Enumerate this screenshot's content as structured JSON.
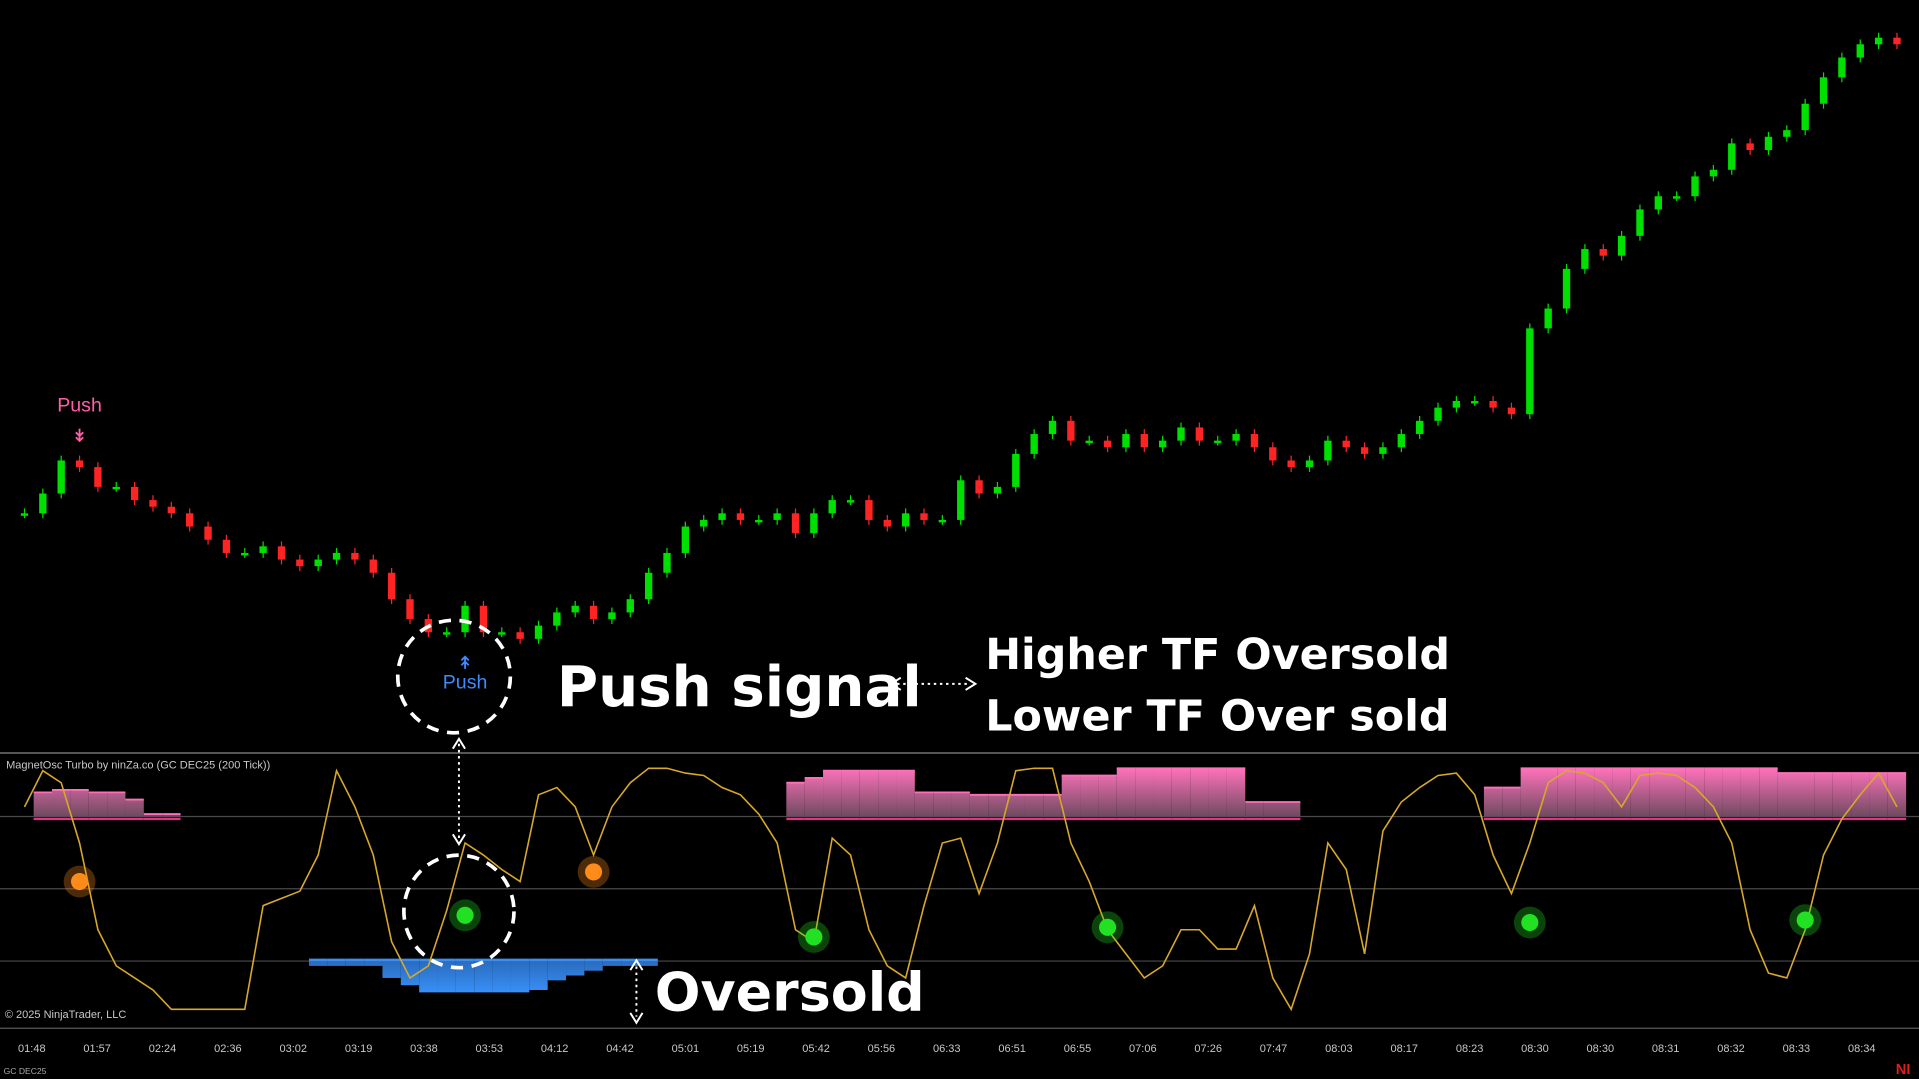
{
  "chart_data": [
    {
      "type": "candlestick",
      "values": [
        26,
        29,
        34,
        33,
        30,
        30,
        28,
        27,
        26,
        24,
        22,
        20,
        20,
        21,
        19,
        18,
        19,
        20,
        19,
        17,
        13,
        10,
        8,
        8,
        12,
        8,
        8,
        7,
        9,
        11,
        12,
        10,
        11,
        13,
        17,
        20,
        24,
        25,
        26,
        25,
        25,
        26,
        23,
        26,
        28,
        28,
        25,
        24,
        26,
        25,
        25,
        31,
        29,
        30,
        35,
        38,
        40,
        37,
        37,
        36,
        38,
        36,
        37,
        39,
        37,
        37,
        38,
        36,
        34,
        33,
        34,
        37,
        36,
        35,
        36,
        38,
        40,
        42,
        43,
        43,
        42,
        41,
        54,
        57,
        63,
        66,
        65,
        68,
        72,
        74,
        74,
        77,
        78,
        82,
        81,
        83,
        84,
        88,
        92,
        95,
        97,
        98,
        97
      ],
      "ylim": [
        0,
        100
      ],
      "up_color": "#00e000",
      "down_color": "#ff2424",
      "signals": [
        {
          "index": 3,
          "label": "Push",
          "side": "above",
          "color": "#ff5fa8"
        },
        {
          "index": 24,
          "label": "Push",
          "side": "below",
          "color": "#3d8bff"
        }
      ]
    },
    {
      "type": "oscillator",
      "title": "MagnetOsc Turbo by ninZa.co (GC DEC25 (200 Tick))",
      "values": [
        84,
        99,
        94,
        69,
        33,
        18,
        13,
        8,
        0,
        0,
        0,
        0,
        0,
        43,
        46,
        49,
        64,
        99,
        84,
        64,
        28,
        13,
        18,
        41,
        69,
        64,
        58,
        53,
        89,
        92,
        84,
        64,
        84,
        94,
        100,
        100,
        98,
        97,
        92,
        89,
        81,
        69,
        33,
        28,
        71,
        64,
        33,
        18,
        13,
        43,
        69,
        71,
        48,
        69,
        99,
        100,
        100,
        69,
        53,
        33,
        23,
        13,
        18,
        33,
        33,
        25,
        25,
        43,
        13,
        0,
        23,
        69,
        58,
        23,
        74,
        86,
        92,
        97,
        98,
        89,
        64,
        48,
        69,
        94,
        99,
        98,
        94,
        84,
        97,
        98,
        97,
        92,
        84,
        69,
        33,
        15,
        13,
        33,
        64,
        79,
        89,
        98,
        84
      ],
      "color": "#d8a82a",
      "ylim": [
        0,
        100
      ],
      "levels": [
        80,
        50,
        20
      ],
      "overbought_zone": [
        null,
        90,
        91,
        91,
        90,
        90,
        87,
        81,
        81,
        null,
        null,
        null,
        null,
        null,
        null,
        null,
        null,
        null,
        null,
        null,
        null,
        null,
        null,
        null,
        null,
        null,
        null,
        null,
        null,
        null,
        null,
        null,
        null,
        null,
        null,
        null,
        null,
        null,
        null,
        null,
        null,
        null,
        94,
        96,
        99,
        99,
        99,
        99,
        99,
        90,
        90,
        90,
        89,
        89,
        89,
        89,
        89,
        97,
        97,
        97,
        100,
        100,
        100,
        100,
        100,
        100,
        100,
        86,
        86,
        86,
        null,
        null,
        null,
        null,
        null,
        null,
        null,
        null,
        null,
        null,
        92,
        92,
        100,
        100,
        100,
        100,
        100,
        100,
        100,
        100,
        100,
        100,
        100,
        100,
        100,
        100,
        98,
        98,
        98,
        98,
        98,
        98,
        98
      ],
      "oversold_zone": [
        null,
        null,
        null,
        null,
        null,
        null,
        null,
        null,
        null,
        null,
        null,
        null,
        null,
        null,
        null,
        null,
        18,
        18,
        18,
        18,
        13,
        10,
        7,
        7,
        7,
        7,
        7,
        7,
        8,
        12,
        14,
        16,
        18,
        18,
        18,
        null,
        null,
        null,
        null,
        null,
        null,
        null,
        null,
        null,
        null,
        null,
        null,
        null,
        null,
        null,
        null,
        null,
        null,
        null,
        null,
        null,
        null,
        null,
        null,
        null,
        null,
        null,
        null,
        null,
        null,
        null,
        null,
        null,
        null,
        null,
        null,
        null,
        null,
        null,
        null,
        null,
        null,
        null,
        null,
        null,
        null,
        null,
        null,
        null,
        null,
        null,
        null,
        null,
        null,
        null,
        null,
        null,
        null,
        null,
        null,
        null,
        null,
        null,
        null,
        null,
        null,
        null,
        null
      ],
      "overbought_color": "#ff6fb8",
      "oversold_color": "#3a8ff0",
      "dots": [
        {
          "index": 3,
          "value": 53,
          "color": "#ff8c1a"
        },
        {
          "index": 24,
          "value": 39,
          "color": "#22e022"
        },
        {
          "index": 31,
          "value": 57,
          "color": "#ff8c1a"
        },
        {
          "index": 43,
          "value": 30,
          "color": "#22e022"
        },
        {
          "index": 59,
          "value": 34,
          "color": "#22e022"
        },
        {
          "index": 82,
          "value": 36,
          "color": "#22e022"
        },
        {
          "index": 97,
          "value": 37,
          "color": "#22e022"
        }
      ],
      "time_labels": [
        "01:48",
        "01:57",
        "02:24",
        "02:36",
        "03:02",
        "03:19",
        "03:38",
        "03:53",
        "04:12",
        "04:42",
        "05:01",
        "05:19",
        "05:42",
        "05:56",
        "06:33",
        "06:51",
        "06:55",
        "07:06",
        "07:26",
        "07:47",
        "08:03",
        "08:17",
        "08:23",
        "08:30",
        "08:30",
        "08:31",
        "08:32",
        "08:33",
        "08:34"
      ]
    }
  ],
  "annotations": {
    "push_signal": "Push signal",
    "higher_tf": "Higher TF Oversold",
    "lower_tf": "Lower TF Over sold",
    "oversold": "Oversold",
    "copyright": "© 2025 NinjaTrader, LLC",
    "instrument": "GC DEC25",
    "brand": "NI"
  }
}
